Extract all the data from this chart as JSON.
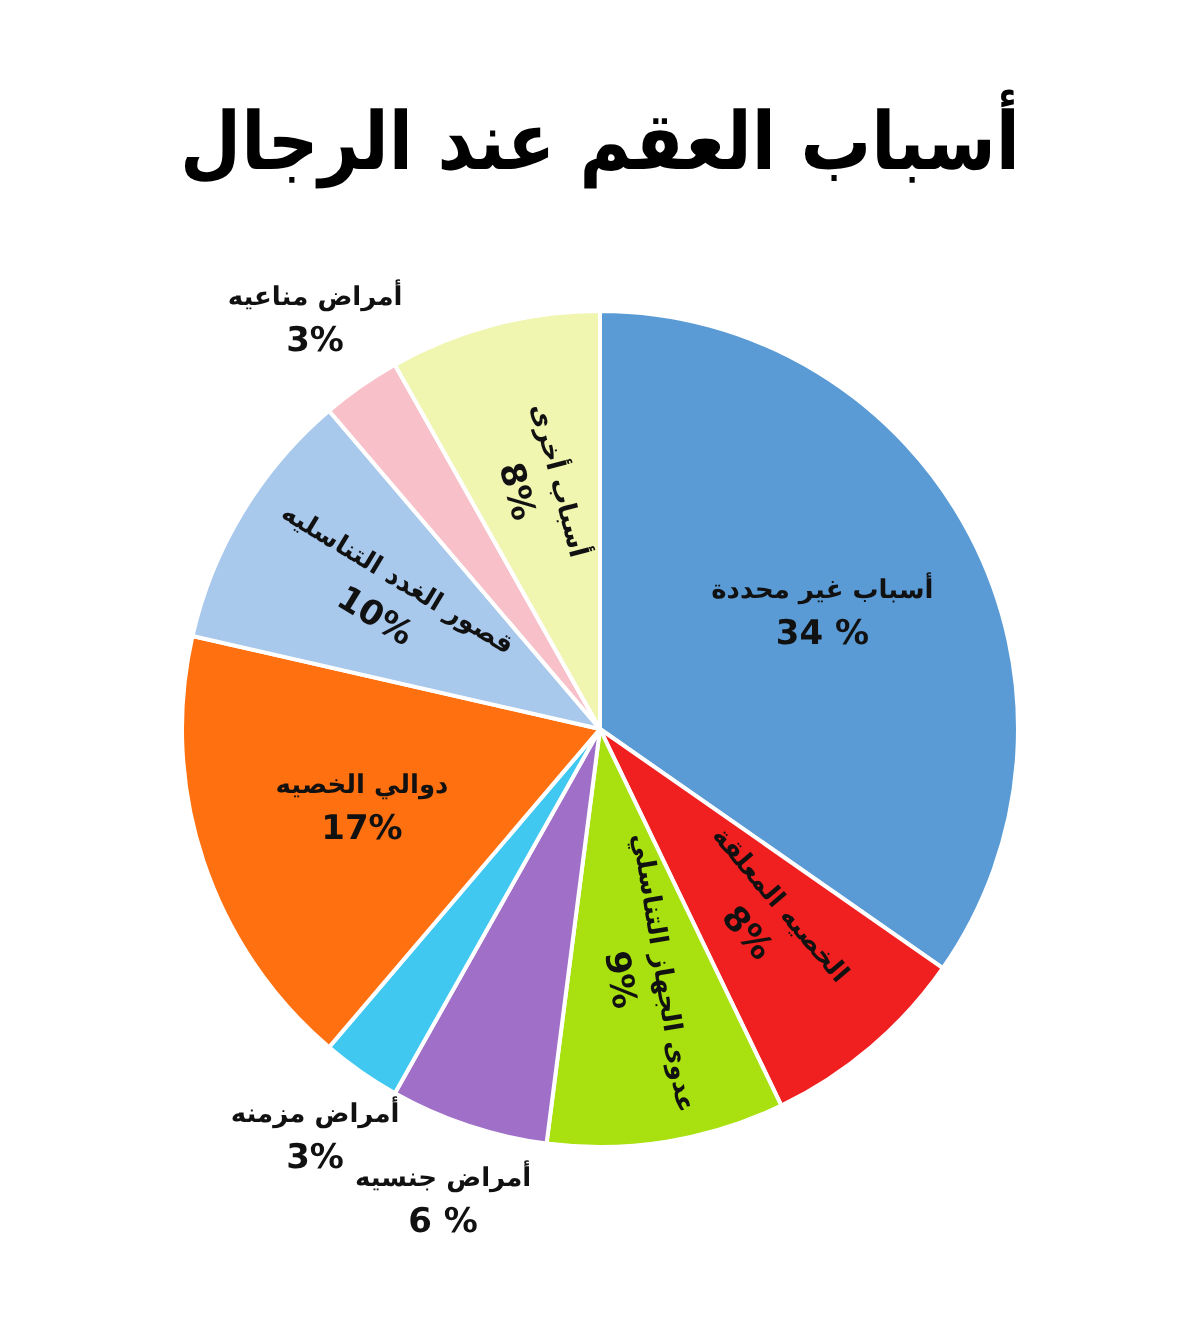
{
  "chart_data": {
    "type": "pie",
    "title": "أسباب العقم عند الرجال",
    "categories": [
      "أسباب غير محددة",
      "الخصيه المعلقة",
      "عدوى الجهاز التناسلي",
      "أمراض جنسيه",
      "أمراض مزمنه",
      "دوالي الخصيه",
      "قصور الغدد التناسليه",
      "أمراض مناعيه",
      "أسباب أخرى"
    ],
    "values": [
      34,
      8,
      9,
      6,
      3,
      17,
      10,
      3,
      8
    ],
    "value_labels": [
      "34 %",
      "8%",
      "9%",
      "6 %",
      "3%",
      "17%",
      "10%",
      "3%",
      "8%"
    ],
    "colors": [
      "#5b9bd5",
      "#f02020",
      "#a8e010",
      "#a070c8",
      "#40c8f0",
      "#ff7010",
      "#a8c8ec",
      "#f8c0c8",
      "#f0f5b0"
    ],
    "legend": false
  }
}
